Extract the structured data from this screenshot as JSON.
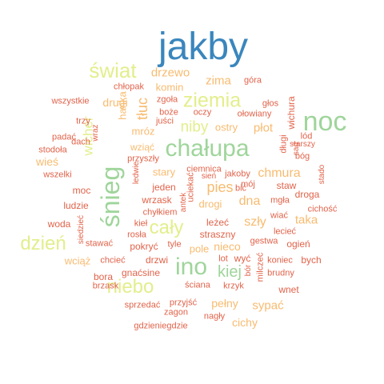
{
  "palette": {
    "blue": "#3a86bd",
    "green": "#9fd59b",
    "lime": "#e3ee8c",
    "lightorange": "#f8bb70",
    "orange": "#f39a58",
    "red": "#e1634a"
  },
  "words": [
    {
      "t": "jakby",
      "c": "blue"
    },
    {
      "t": "noc",
      "c": "green"
    },
    {
      "t": "chałupa",
      "c": "green"
    },
    {
      "t": "śnieg",
      "c": "green"
    },
    {
      "t": "ino",
      "c": "green"
    },
    {
      "t": "świat",
      "c": "lime"
    },
    {
      "t": "ziemia",
      "c": "lime"
    },
    {
      "t": "dzień",
      "c": "lime"
    },
    {
      "t": "cały",
      "c": "lime"
    },
    {
      "t": "niebo",
      "c": "lime"
    },
    {
      "t": "niby",
      "c": "lime"
    },
    {
      "t": "kiej",
      "c": "green"
    },
    {
      "t": "wicher",
      "c": "lime"
    },
    {
      "t": "drzewo",
      "c": "lightorange"
    },
    {
      "t": "zima",
      "c": "lightorange"
    },
    {
      "t": "tłuc",
      "c": "lightorange"
    },
    {
      "t": "drugi",
      "c": "lightorange"
    },
    {
      "t": "pies",
      "c": "lightorange"
    },
    {
      "t": "chmura",
      "c": "lightorange"
    },
    {
      "t": "płot",
      "c": "lightorange"
    },
    {
      "t": "dna",
      "c": "lightorange"
    },
    {
      "t": "szły",
      "c": "lightorange"
    },
    {
      "t": "wieś",
      "c": "lightorange"
    },
    {
      "t": "taka",
      "c": "lightorange"
    },
    {
      "t": "pełny",
      "c": "lightorange"
    },
    {
      "t": "sypać",
      "c": "lightorange"
    },
    {
      "t": "cichy",
      "c": "lightorange"
    },
    {
      "t": "wciąż",
      "c": "lightorange"
    },
    {
      "t": "drogi",
      "c": "lightorange"
    },
    {
      "t": "nieco",
      "c": "lightorange"
    },
    {
      "t": "stary",
      "c": "lightorange"
    },
    {
      "t": "hanka",
      "c": "lightorange"
    },
    {
      "t": "mróz",
      "c": "lightorange"
    },
    {
      "t": "wziąć",
      "c": "lightorange"
    },
    {
      "t": "ostry",
      "c": "lightorange"
    },
    {
      "t": "komin",
      "c": "lightorange"
    },
    {
      "t": "pole",
      "c": "lightorange"
    },
    {
      "t": "gdzieniegdzie",
      "c": "red"
    },
    {
      "t": "chłopak",
      "c": "red"
    },
    {
      "t": "góra",
      "c": "red"
    },
    {
      "t": "wszystkie",
      "c": "red"
    },
    {
      "t": "zgoła",
      "c": "red"
    },
    {
      "t": "głos",
      "c": "red"
    },
    {
      "t": "boże",
      "c": "red"
    },
    {
      "t": "oczy",
      "c": "red"
    },
    {
      "t": "wichura",
      "c": "red"
    },
    {
      "t": "trzy",
      "c": "red"
    },
    {
      "t": "juści",
      "c": "red"
    },
    {
      "t": "ołowiany",
      "c": "red"
    },
    {
      "t": "lód",
      "c": "red"
    },
    {
      "t": "padać",
      "c": "red"
    },
    {
      "t": "wraz",
      "c": "red"
    },
    {
      "t": "długi",
      "c": "red"
    },
    {
      "t": "starszy",
      "c": "red"
    },
    {
      "t": "sad",
      "c": "red"
    },
    {
      "t": "dach",
      "c": "red"
    },
    {
      "t": "stodoła",
      "c": "red"
    },
    {
      "t": "przyszły",
      "c": "red"
    },
    {
      "t": "bóg",
      "c": "red"
    },
    {
      "t": "wszelki",
      "c": "red"
    },
    {
      "t": "ciemnica",
      "c": "red"
    },
    {
      "t": "ledwie",
      "c": "red"
    },
    {
      "t": "uciekać",
      "c": "red"
    },
    {
      "t": "sień",
      "c": "red"
    },
    {
      "t": "jakoby",
      "c": "red"
    },
    {
      "t": "staw",
      "c": "red"
    },
    {
      "t": "stado",
      "c": "red"
    },
    {
      "t": "jeden",
      "c": "red"
    },
    {
      "t": "mój",
      "c": "red"
    },
    {
      "t": "moc",
      "c": "red"
    },
    {
      "t": "wrzask",
      "c": "red"
    },
    {
      "t": "antek",
      "c": "red"
    },
    {
      "t": "mgła",
      "c": "red"
    },
    {
      "t": "droga",
      "c": "red"
    },
    {
      "t": "ludzie",
      "c": "red"
    },
    {
      "t": "chyłkiem",
      "c": "red"
    },
    {
      "t": "leżeć",
      "c": "red"
    },
    {
      "t": "wiać",
      "c": "red"
    },
    {
      "t": "cichość",
      "c": "red"
    },
    {
      "t": "woda",
      "c": "red"
    },
    {
      "t": "siedzieć",
      "c": "red"
    },
    {
      "t": "kieł",
      "c": "red"
    },
    {
      "t": "straszny",
      "c": "red"
    },
    {
      "t": "gestwa",
      "c": "red"
    },
    {
      "t": "ogień",
      "c": "red"
    },
    {
      "t": "stawać",
      "c": "red"
    },
    {
      "t": "rosła",
      "c": "red"
    },
    {
      "t": "lecieć",
      "c": "red"
    },
    {
      "t": "pokryć",
      "c": "red"
    },
    {
      "t": "tyle",
      "c": "red"
    },
    {
      "t": "koniec",
      "c": "red"
    },
    {
      "t": "bych",
      "c": "red"
    },
    {
      "t": "chcieć",
      "c": "red"
    },
    {
      "t": "drzwi",
      "c": "red"
    },
    {
      "t": "lot",
      "c": "red"
    },
    {
      "t": "wyć",
      "c": "red"
    },
    {
      "t": "bora",
      "c": "red"
    },
    {
      "t": "gnaćsine",
      "c": "red"
    },
    {
      "t": "bór",
      "c": "red"
    },
    {
      "t": "brudny",
      "c": "red"
    },
    {
      "t": "milczeć",
      "c": "red"
    },
    {
      "t": "brzask",
      "c": "red"
    },
    {
      "t": "ściana",
      "c": "red"
    },
    {
      "t": "krzyk",
      "c": "red"
    },
    {
      "t": "wnet",
      "c": "red"
    },
    {
      "t": "sprzedać",
      "c": "red"
    },
    {
      "t": "przyjść",
      "c": "red"
    },
    {
      "t": "zagon",
      "c": "red"
    },
    {
      "t": "nagły",
      "c": "red"
    },
    {
      "t": "bić",
      "c": "red"
    }
  ]
}
